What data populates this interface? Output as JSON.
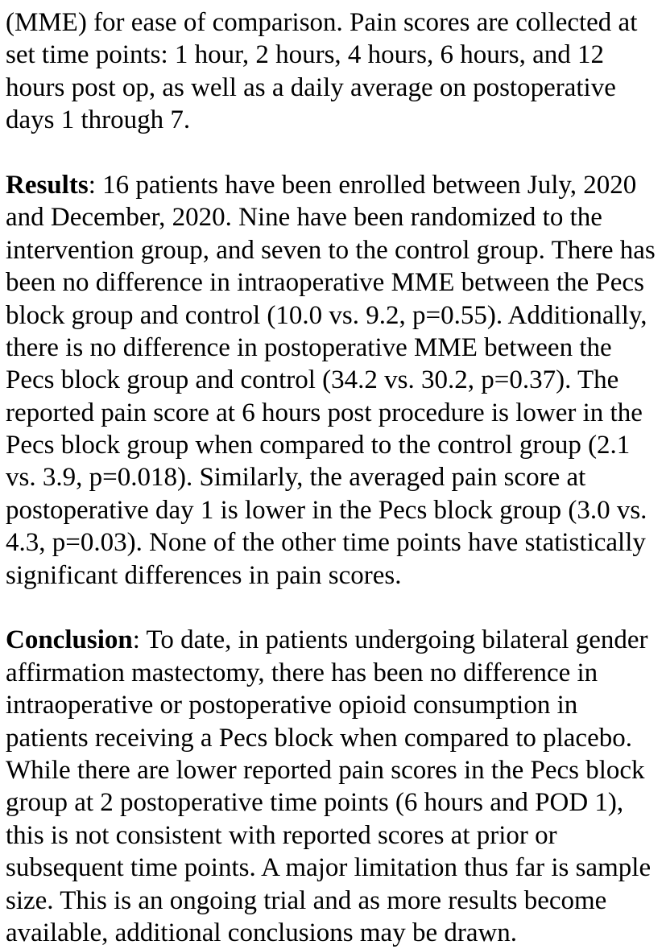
{
  "page": {
    "background_color": "#ffffff",
    "text_color": "#000000"
  },
  "document": {
    "paragraphs": [
      {
        "bold_lead": "",
        "lines": [
          "(MME) for ease of comparison. Pain scores are collected at",
          "set time points: 1 hour, 2 hours, 4 hours, 6 hours, and 12",
          "hours post op, as well as a daily average on postoperative",
          "days 1 through 7."
        ]
      },
      {
        "bold_lead": "Results",
        "lines": [
          ": 16 patients have been enrolled between July, 2020",
          "and December, 2020. Nine have been randomized to the",
          "intervention group, and seven to the control group. There has",
          "been no difference in intraoperative MME between the Pecs",
          "block group and control (10.0 vs. 9.2, p=0.55). Additionally,",
          "there is no difference in postoperative MME between the",
          "Pecs block group and control (34.2 vs. 30.2, p=0.37). The",
          "reported pain score at 6 hours post procedure is lower in the",
          "Pecs block group when compared to the control group (2.1",
          "vs. 3.9, p=0.018). Similarly, the averaged pain score at",
          "postoperative day 1 is lower in the Pecs block group (3.0 vs.",
          "4.3, p=0.03). None of the other time points have statistically",
          "significant differences in pain scores."
        ]
      },
      {
        "bold_lead": "Conclusion",
        "lines": [
          ": To date, in patients undergoing bilateral gender",
          "affirmation mastectomy, there has been no difference in",
          "intraoperative or postoperative opioid consumption in",
          "patients receiving a Pecs block when compared to placebo.",
          "While there are lower reported pain scores in the Pecs block",
          "group at 2 postoperative time points (6 hours and POD 1),",
          "this is not consistent with reported scores at prior or",
          "subsequent time points. A major limitation thus far is sample",
          "size. This is an ongoing trial and as more results become",
          "available, additional conclusions may be drawn."
        ]
      }
    ]
  }
}
